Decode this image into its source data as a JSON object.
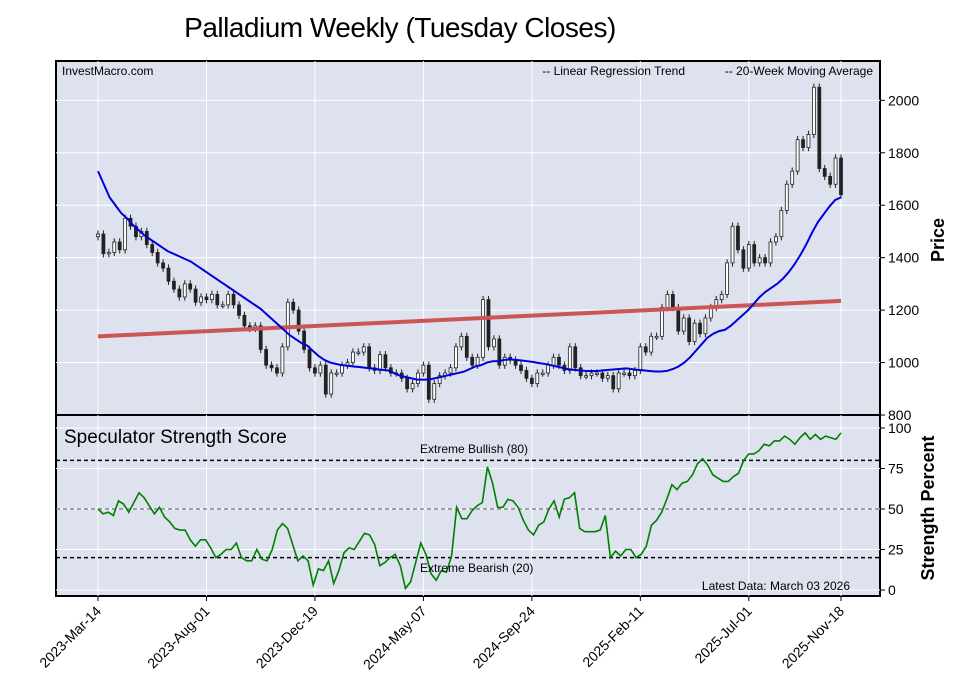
{
  "title": "Palladium Weekly (Tuesday Closes)",
  "watermark": "InvestMacro.com",
  "legend": {
    "trend_label": "-- Linear Regression Trend",
    "ma_label": "-- 20-Week Moving Average",
    "trend_color": "#990000",
    "ma_color": "#0000ee"
  },
  "colors": {
    "panel_bg": "#dde2ee",
    "grid": "#ffffff",
    "up_candle": "#ffffff",
    "down_candle": "#222222",
    "trend_line": "#cc5555",
    "ma_line": "#0000dd",
    "score_line": "#008000"
  },
  "chart_data": [
    {
      "type": "candlestick",
      "ylabel": "Price",
      "ylim": [
        800,
        2150
      ],
      "yticks": [
        800,
        1000,
        1200,
        1400,
        1600,
        1800,
        2000
      ],
      "close_values": [
        1490,
        1415,
        1420,
        1460,
        1430,
        1550,
        1520,
        1480,
        1500,
        1450,
        1420,
        1380,
        1360,
        1310,
        1280,
        1250,
        1300,
        1280,
        1230,
        1250,
        1240,
        1260,
        1220,
        1220,
        1260,
        1220,
        1180,
        1140,
        1130,
        1140,
        1050,
        990,
        980,
        960,
        1060,
        1230,
        1200,
        1120,
        1050,
        980,
        960,
        990,
        880,
        960,
        960,
        990,
        1000,
        1040,
        1040,
        1060,
        980,
        970,
        1030,
        980,
        960,
        960,
        940,
        900,
        920,
        960,
        990,
        860,
        920,
        950,
        960,
        980,
        1060,
        1100,
        1020,
        990,
        1020,
        1240,
        1060,
        1090,
        990,
        1020,
        1010,
        990,
        970,
        940,
        920,
        960,
        960,
        990,
        1020,
        990,
        970,
        1060,
        980,
        950,
        950,
        960,
        960,
        940,
        950,
        900,
        960,
        960,
        950,
        970,
        1060,
        1040,
        1100,
        1100,
        1210,
        1260,
        1210,
        1120,
        1170,
        1080,
        1150,
        1110,
        1170,
        1210,
        1240,
        1260,
        1380,
        1520,
        1430,
        1360,
        1450,
        1380,
        1400,
        1380,
        1460,
        1480,
        1580,
        1680,
        1730,
        1850,
        1820,
        1870,
        2050,
        1740,
        1710,
        1680,
        1780,
        1640
      ],
      "trend_start": 1100,
      "trend_end": 1235,
      "ma_values": [
        1730,
        1680,
        1630,
        1600,
        1570,
        1550,
        1525,
        1505,
        1485,
        1470,
        1455,
        1440,
        1425,
        1415,
        1405,
        1395,
        1385,
        1370,
        1355,
        1340,
        1325,
        1310,
        1295,
        1280,
        1265,
        1250,
        1235,
        1220,
        1205,
        1185,
        1165,
        1145,
        1125,
        1105,
        1090,
        1075,
        1065,
        1045,
        1025,
        1010,
        1000,
        995,
        990,
        988,
        985,
        983,
        980,
        978,
        975,
        972,
        970,
        960,
        950,
        945,
        940,
        935,
        935,
        935,
        940,
        945,
        950,
        955,
        960,
        965,
        975,
        985,
        990,
        1000,
        1005,
        1005,
        1010,
        1012,
        1010,
        1008,
        1005,
        1002,
        998,
        995,
        990,
        985,
        980,
        975,
        972,
        970,
        968,
        968,
        968,
        970,
        972,
        974,
        976,
        978,
        975,
        972,
        970,
        968,
        966,
        966,
        968,
        975,
        985,
        1000,
        1020,
        1045,
        1070,
        1095,
        1110,
        1120,
        1125,
        1140,
        1160,
        1180,
        1200,
        1225,
        1250,
        1270,
        1285,
        1300,
        1320,
        1345,
        1375,
        1410,
        1450,
        1495,
        1535,
        1565,
        1595,
        1620,
        1630
      ]
    },
    {
      "type": "line",
      "ylabel": "Strength Percent",
      "ylim": [
        0,
        100
      ],
      "yticks": [
        0,
        25,
        50,
        75,
        100
      ],
      "x_tick_labels": [
        "2023-Mar-14",
        "2023-Aug-01",
        "2023-Dec-19",
        "2024-May-07",
        "2024-Sep-24",
        "2025-Feb-11",
        "2025-Jul-01",
        "2025-Nov-18"
      ],
      "panel_label": "Speculator Strength Score",
      "extreme_bullish_label": "Extreme Bullish (80)",
      "extreme_bearish_label": "Extreme Bearish (20)",
      "latest_label": "Latest Data: March 03 2026",
      "values": [
        50,
        47,
        48,
        46,
        55,
        53,
        48,
        54,
        60,
        57,
        52,
        47,
        51,
        45,
        42,
        38,
        37,
        37,
        31,
        27,
        31,
        31,
        26,
        20,
        22,
        25,
        25,
        29,
        20,
        18,
        18,
        25,
        19,
        18,
        25,
        37,
        41,
        38,
        28,
        18,
        21,
        18,
        3,
        13,
        12,
        18,
        4,
        12,
        23,
        26,
        25,
        30,
        35,
        34,
        28,
        15,
        17,
        20,
        22,
        15,
        1,
        5,
        17,
        29,
        22,
        10,
        6,
        12,
        11,
        21,
        51,
        44,
        44,
        49,
        52,
        54,
        76,
        66,
        51,
        51,
        56,
        55,
        51,
        43,
        37,
        34,
        40,
        42,
        50,
        55,
        45,
        56,
        57,
        60,
        38,
        36,
        36,
        36,
        37,
        46,
        20,
        24,
        21,
        25,
        25,
        20,
        22,
        27,
        40,
        43,
        48,
        56,
        65,
        62,
        66,
        67,
        71,
        78,
        81,
        77,
        71,
        69,
        67,
        67,
        70,
        72,
        80,
        84,
        84,
        86,
        90,
        89,
        92,
        92,
        95,
        93,
        90,
        94,
        97,
        93,
        96,
        93,
        95,
        94,
        93,
        97
      ],
      "extreme_bullish": 80,
      "extreme_bearish": 20
    }
  ]
}
